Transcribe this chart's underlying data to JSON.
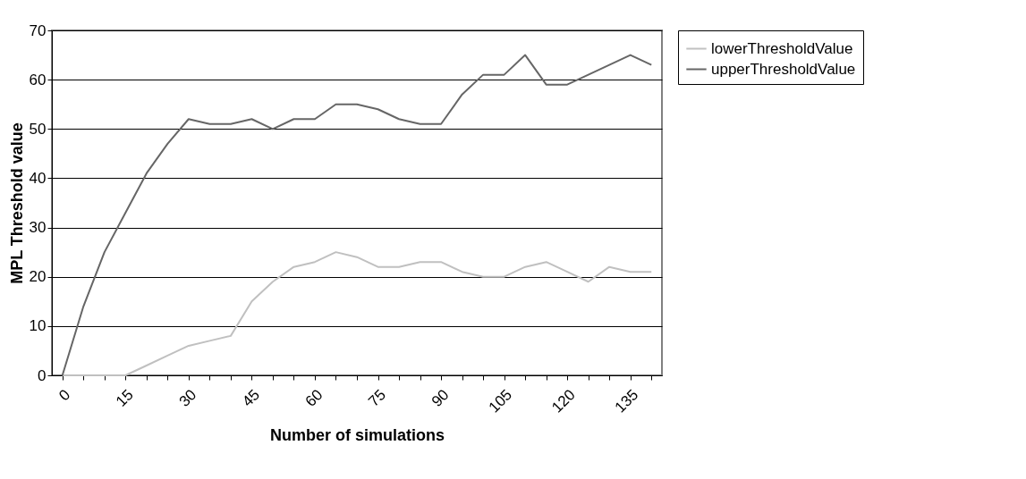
{
  "chart_data": {
    "type": "line",
    "xlabel": "Number of simulations",
    "ylabel": "MPL Threshold value",
    "categories": [
      "0",
      null,
      null,
      "15",
      null,
      null,
      "30",
      null,
      null,
      "45",
      null,
      null,
      "60",
      null,
      null,
      "75",
      null,
      null,
      "90",
      null,
      null,
      "105",
      null,
      null,
      "120",
      null,
      null,
      "135",
      null
    ],
    "series": [
      {
        "name": "lowerThresholdValue",
        "color": "#c0c0c0",
        "values": [
          0,
          0,
          0,
          0,
          2,
          4,
          6,
          7,
          8,
          15,
          19,
          22,
          23,
          25,
          24,
          22,
          22,
          23,
          23,
          21,
          20,
          20,
          22,
          23,
          21,
          19,
          22,
          21,
          21
        ]
      },
      {
        "name": "upperThresholdValue",
        "color": "#666666",
        "values": [
          0,
          14,
          25,
          33,
          41,
          47,
          52,
          51,
          51,
          52,
          50,
          52,
          52,
          55,
          55,
          54,
          52,
          51,
          51,
          57,
          61,
          61,
          65,
          59,
          59,
          61,
          63,
          65,
          63
        ]
      }
    ],
    "ylim": [
      0,
      70
    ],
    "yticks": [
      0,
      10,
      20,
      30,
      40,
      50,
      60,
      70
    ],
    "grid": "y",
    "legend": "right",
    "marker": "none",
    "line_style": "solid"
  }
}
